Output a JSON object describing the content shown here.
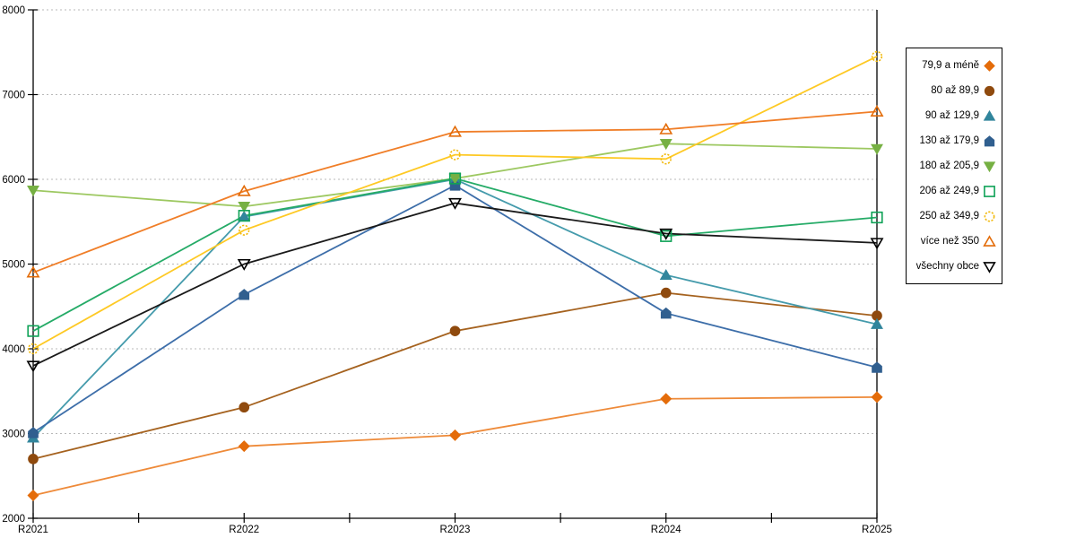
{
  "chart_data": {
    "type": "line",
    "title": "",
    "xlabel": "",
    "ylabel": "",
    "categories": [
      "R2021",
      "R2022",
      "R2023",
      "R2024",
      "R2025"
    ],
    "ylim": [
      2000,
      8000
    ],
    "y_tick_step": 1000,
    "y_tick_labels": [
      "2000",
      "3000",
      "4000",
      "5000",
      "6000",
      "7000",
      "8000"
    ],
    "grid": "horizontal-dashed",
    "grid_color": "#B8B8B8",
    "axis_color": "#000000",
    "background_color": "#FFFFFF",
    "legend_position": "right",
    "series": [
      {
        "name": "79,9 a méně",
        "marker": "diamond",
        "filled": true,
        "color": "#E46C0A",
        "line_color": "#EE8A39",
        "values": [
          2270,
          2850,
          2980,
          3410,
          3430
        ]
      },
      {
        "name": "80 až 89,9",
        "marker": "circle",
        "filled": true,
        "color": "#8F4A0E",
        "line_color": "#A5621F",
        "values": [
          2700,
          3310,
          4210,
          4660,
          4390
        ]
      },
      {
        "name": "90 až 129,9",
        "marker": "triangle-up",
        "filled": true,
        "color": "#31859C",
        "line_color": "#459BAC",
        "values": [
          2950,
          5560,
          6000,
          4870,
          4290
        ]
      },
      {
        "name": "130 až 179,9",
        "marker": "pentagon",
        "filled": true,
        "color": "#305F8F",
        "line_color": "#3D6EA9",
        "values": [
          3010,
          4640,
          5930,
          4420,
          3780
        ]
      },
      {
        "name": "180 až 205,9",
        "marker": "triangle-down",
        "filled": true,
        "color": "#76B043",
        "line_color": "#9DC861",
        "values": [
          5870,
          5680,
          6010,
          6420,
          6360
        ]
      },
      {
        "name": "206 až 249,9",
        "marker": "square",
        "filled": false,
        "color": "#0FA257",
        "line_color": "#25AB67",
        "values": [
          4210,
          5570,
          6010,
          5330,
          5550
        ]
      },
      {
        "name": "250 až 349,9",
        "marker": "circle",
        "filled": false,
        "dashed_marker": true,
        "color": "#F2B90B",
        "line_color": "#FEC924",
        "values": [
          4000,
          5400,
          6290,
          6240,
          7450
        ]
      },
      {
        "name": "více než 350",
        "marker": "triangle-up",
        "filled": false,
        "color": "#E36C09",
        "line_color": "#F07E28",
        "values": [
          4900,
          5860,
          6560,
          6590,
          6800
        ]
      },
      {
        "name": "všechny obce",
        "marker": "triangle-down",
        "filled": false,
        "color": "#000000",
        "line_color": "#1A1A1A",
        "values": [
          3800,
          5000,
          5720,
          5360,
          5250
        ]
      }
    ]
  }
}
